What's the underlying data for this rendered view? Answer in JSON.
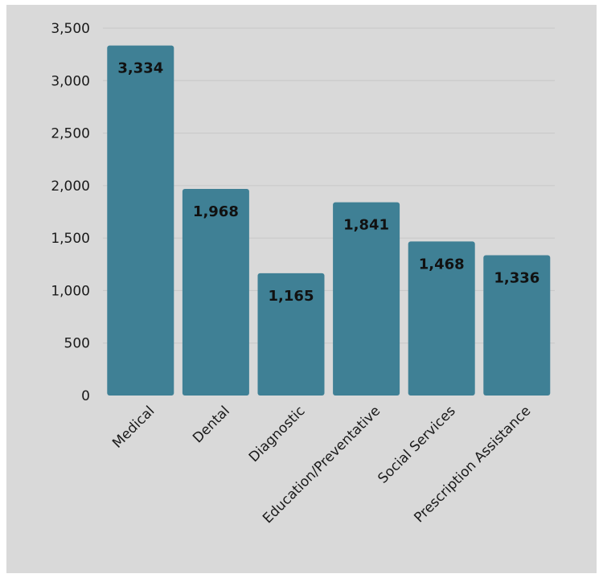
{
  "chart_data": {
    "type": "bar",
    "title": "",
    "xlabel": "",
    "ylabel": "",
    "categories": [
      "Medical",
      "Dental",
      "Diagnostic",
      "Education/Preventative",
      "Social Services",
      "Prescription Assistance"
    ],
    "values": [
      3334,
      1968,
      1165,
      1841,
      1468,
      1336
    ],
    "data_labels": [
      "3,334",
      "1,968",
      "1,165",
      "1,841",
      "1,468",
      "1,336"
    ],
    "ylim": [
      0,
      3500
    ],
    "yticks": [
      0,
      500,
      1000,
      1500,
      2000,
      2500,
      3000,
      3500
    ],
    "ytick_labels": [
      "0",
      "500",
      "1,000",
      "1,500",
      "2,000",
      "2,500",
      "3,000",
      "3,500"
    ],
    "grid": true,
    "legend": "none",
    "bar_color": "#3f8095",
    "background_color": "#d9d9d9"
  }
}
